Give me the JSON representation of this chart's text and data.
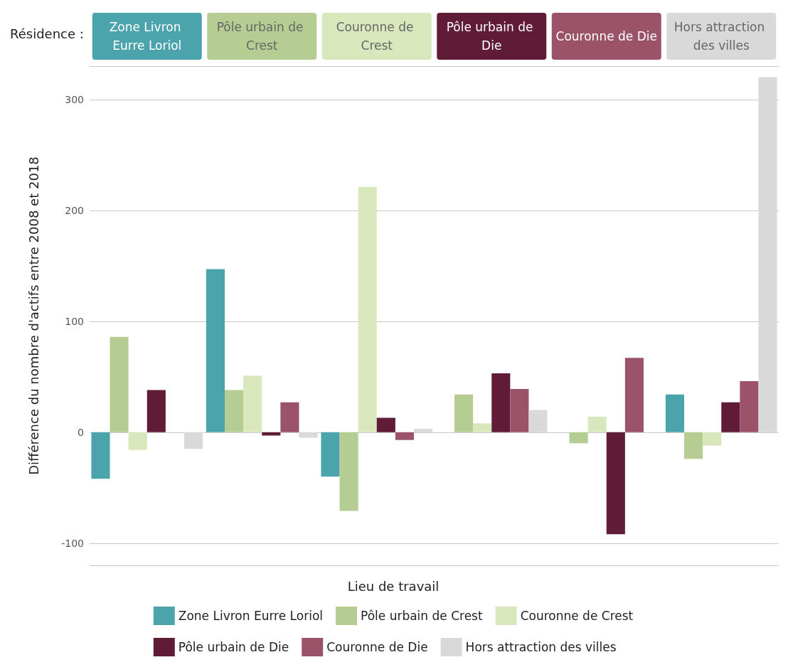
{
  "chart_data": {
    "type": "bar",
    "xlabel": "Résidence :",
    "ylabel": "Différence du nombre d'actifs entre 2008 et 2018",
    "legend_title": "Lieu de travail",
    "categories": [
      "Zone Livron Eurre Loriol",
      "Pôle urbain de Crest",
      "Couronne de Crest",
      "Pôle urbain de Die",
      "Couronne de Die",
      "Hors attraction des villes"
    ],
    "series": [
      {
        "name": "Zone Livron Eurre Loriol",
        "color": "#4ba3ac",
        "values": [
          -42,
          147,
          -40,
          0,
          0,
          34
        ]
      },
      {
        "name": "Pôle urbain de Crest",
        "color": "#b5cd93",
        "values": [
          86,
          38,
          -71,
          34,
          -10,
          -24
        ]
      },
      {
        "name": "Couronne de Crest",
        "color": "#d8e8bc",
        "values": [
          -16,
          51,
          221,
          8,
          14,
          -12
        ]
      },
      {
        "name": "Pôle urbain de Die",
        "color": "#601c36",
        "values": [
          38,
          -3,
          13,
          53,
          -92,
          27
        ]
      },
      {
        "name": "Couronne de Die",
        "color": "#9b536a",
        "values": [
          0,
          27,
          -7,
          39,
          67,
          46
        ]
      },
      {
        "name": "Hors attraction des villes",
        "color": "#d9d9d9",
        "values": [
          -15,
          -5,
          3,
          20,
          0,
          320
        ]
      }
    ],
    "ylim": [
      -120,
      330
    ],
    "yticks": [
      -100,
      0,
      100,
      200,
      300
    ],
    "grid": "y",
    "legend": "bottom"
  }
}
